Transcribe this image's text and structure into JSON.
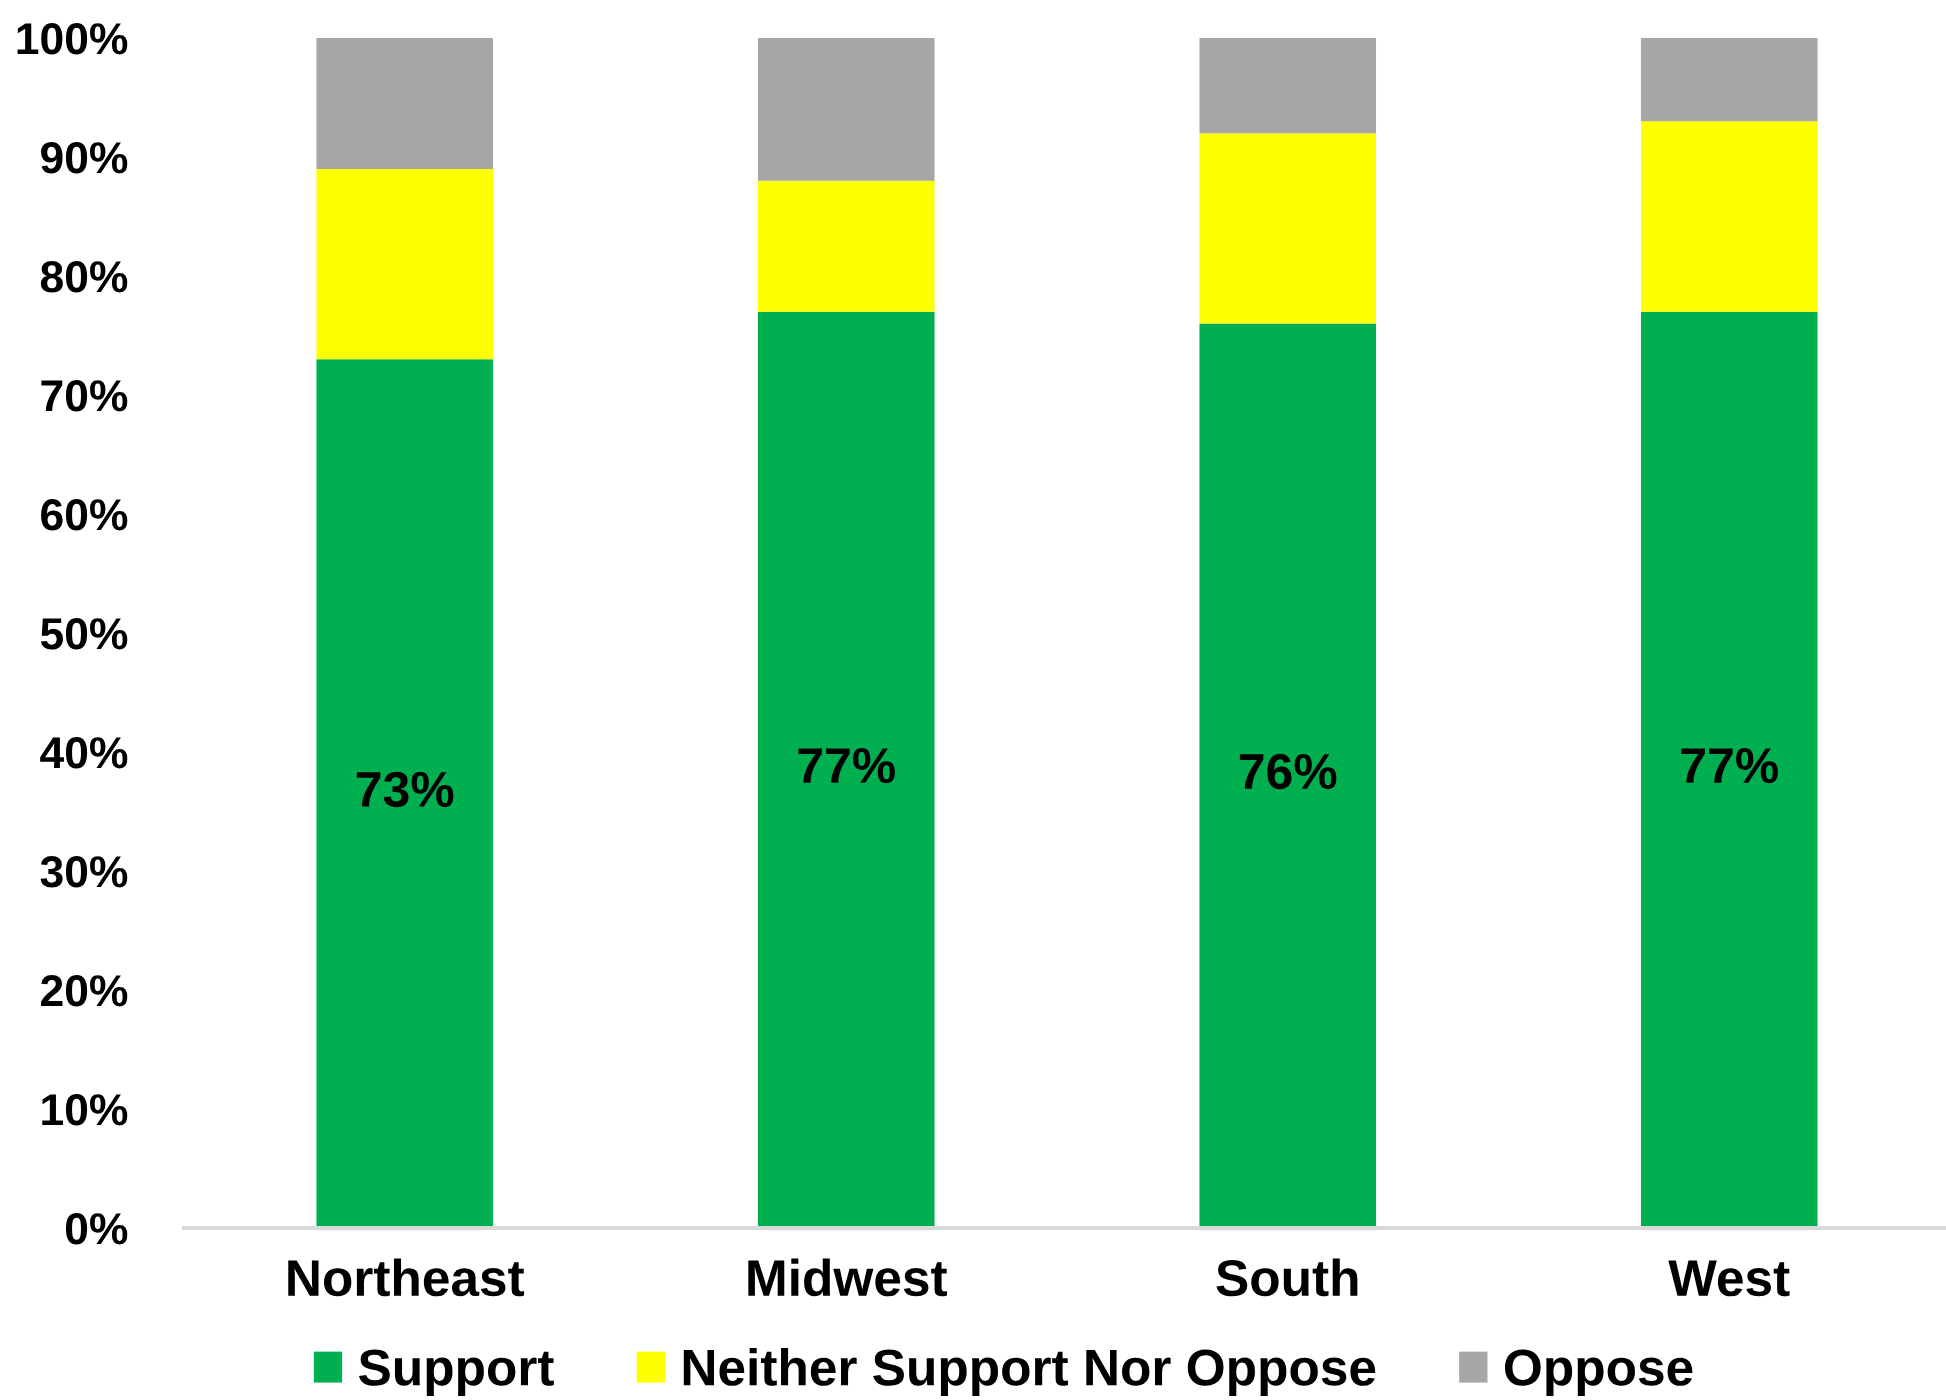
{
  "chart_data": {
    "type": "bar",
    "stacked": true,
    "categories": [
      "Northeast",
      "Midwest",
      "South",
      "West"
    ],
    "series": [
      {
        "name": "Support",
        "color": "#00b050",
        "values": [
          73,
          77,
          76,
          77
        ],
        "value_labels": [
          "73%",
          "77%",
          "76%",
          "77%"
        ]
      },
      {
        "name": "Neither Support Nor Oppose",
        "color": "#ffff00",
        "values": [
          16,
          11,
          16,
          16
        ]
      },
      {
        "name": "Oppose",
        "color": "#a6a6a6",
        "values": [
          11,
          12,
          8,
          7
        ]
      }
    ],
    "ylim": [
      0,
      100
    ],
    "yticks": [
      {
        "value": 0,
        "label": "0%"
      },
      {
        "value": 10,
        "label": "10%"
      },
      {
        "value": 20,
        "label": "20%"
      },
      {
        "value": 30,
        "label": "30%"
      },
      {
        "value": 40,
        "label": "40%"
      },
      {
        "value": 50,
        "label": "50%"
      },
      {
        "value": 60,
        "label": "60%"
      },
      {
        "value": 70,
        "label": "70%"
      },
      {
        "value": 80,
        "label": "80%"
      },
      {
        "value": 90,
        "label": "90%"
      },
      {
        "value": 100,
        "label": "100%"
      }
    ],
    "grid": false,
    "legend": "bottom"
  }
}
